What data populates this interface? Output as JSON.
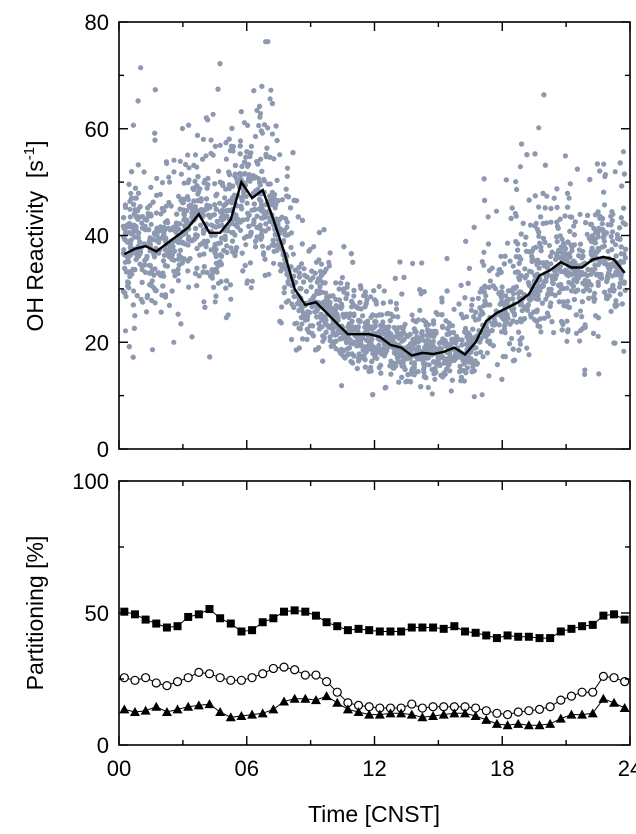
{
  "chart_data": [
    {
      "type": "scatter",
      "title": "",
      "xlabel": "",
      "ylabel": "OH Reactivity  [s",
      "ylabel_sup": "-1",
      "ylabel_end": "]",
      "xlim": [
        0,
        24
      ],
      "ylim": [
        0,
        80
      ],
      "yticks": [
        0,
        20,
        40,
        60,
        80
      ],
      "grid": false,
      "colors": {
        "points": "#8c99b0",
        "line": "#000000"
      },
      "scatter_bands": [
        {
          "x": 0.0,
          "lo": 15,
          "hi": 62
        },
        {
          "x": 1.0,
          "lo": 16,
          "hi": 65
        },
        {
          "x": 2.0,
          "lo": 17,
          "hi": 66
        },
        {
          "x": 3.0,
          "lo": 18,
          "hi": 68
        },
        {
          "x": 4.0,
          "lo": 19,
          "hi": 70
        },
        {
          "x": 5.0,
          "lo": 20,
          "hi": 70
        },
        {
          "x": 6.0,
          "lo": 22,
          "hi": 74
        },
        {
          "x": 7.0,
          "lo": 20,
          "hi": 72
        },
        {
          "x": 8.0,
          "lo": 15,
          "hi": 60
        },
        {
          "x": 9.0,
          "lo": 12,
          "hi": 48
        },
        {
          "x": 10.0,
          "lo": 10,
          "hi": 42
        },
        {
          "x": 11.0,
          "lo": 10,
          "hi": 38
        },
        {
          "x": 12.0,
          "lo": 9,
          "hi": 34
        },
        {
          "x": 13.0,
          "lo": 8,
          "hi": 33
        },
        {
          "x": 14.0,
          "lo": 7,
          "hi": 32
        },
        {
          "x": 15.0,
          "lo": 8,
          "hi": 32
        },
        {
          "x": 16.0,
          "lo": 9,
          "hi": 35
        },
        {
          "x": 17.0,
          "lo": 10,
          "hi": 45
        },
        {
          "x": 18.0,
          "lo": 11,
          "hi": 55
        },
        {
          "x": 19.0,
          "lo": 12,
          "hi": 62
        },
        {
          "x": 20.0,
          "lo": 14,
          "hi": 60
        },
        {
          "x": 21.0,
          "lo": 16,
          "hi": 52
        },
        {
          "x": 22.0,
          "lo": 14,
          "hi": 56
        },
        {
          "x": 23.0,
          "lo": 13,
          "hi": 66
        },
        {
          "x": 24.0,
          "lo": 15,
          "hi": 60
        }
      ],
      "line": {
        "x": [
          0.25,
          0.75,
          1.25,
          1.75,
          2.25,
          2.75,
          3.25,
          3.75,
          4.25,
          4.75,
          5.25,
          5.75,
          6.25,
          6.75,
          7.25,
          7.75,
          8.25,
          8.75,
          9.25,
          9.75,
          10.25,
          10.75,
          11.25,
          11.75,
          12.25,
          12.75,
          13.25,
          13.75,
          14.25,
          14.75,
          15.25,
          15.75,
          16.25,
          16.75,
          17.25,
          17.75,
          18.25,
          18.75,
          19.25,
          19.75,
          20.25,
          20.75,
          21.25,
          21.75,
          22.25,
          22.75,
          23.25,
          23.75
        ],
        "y": [
          36.5,
          37.5,
          38,
          37,
          38.5,
          40,
          41.5,
          44,
          40.5,
          40.5,
          43,
          50,
          47,
          48.5,
          43,
          37,
          30,
          27,
          27.5,
          25.5,
          23.5,
          21.5,
          21.5,
          21.5,
          21,
          19.5,
          19,
          17.5,
          18,
          17.8,
          18.2,
          19,
          17.7,
          20,
          24,
          25.5,
          26.5,
          27.5,
          29,
          32.5,
          33.5,
          35,
          34,
          34,
          35.5,
          36,
          35.5,
          33
        ]
      }
    },
    {
      "type": "line",
      "title": "",
      "xlabel": "Time [CNST]",
      "ylabel": "Partitioning [%]",
      "xlim": [
        0,
        24
      ],
      "ylim": [
        0,
        100
      ],
      "yticks": [
        0,
        50,
        100
      ],
      "xticks": [
        0,
        6,
        12,
        18,
        24
      ],
      "xtick_labels": [
        "00",
        "06",
        "12",
        "18",
        "24"
      ],
      "grid": false,
      "x": [
        0.25,
        0.75,
        1.25,
        1.75,
        2.25,
        2.75,
        3.25,
        3.75,
        4.25,
        4.75,
        5.25,
        5.75,
        6.25,
        6.75,
        7.25,
        7.75,
        8.25,
        8.75,
        9.25,
        9.75,
        10.25,
        10.75,
        11.25,
        11.75,
        12.25,
        12.75,
        13.25,
        13.75,
        14.25,
        14.75,
        15.25,
        15.75,
        16.25,
        16.75,
        17.25,
        17.75,
        18.25,
        18.75,
        19.25,
        19.75,
        20.25,
        20.75,
        21.25,
        21.75,
        22.25,
        22.75,
        23.25,
        23.75
      ],
      "series": [
        {
          "marker": "square-filled",
          "values": [
            50.5,
            49.5,
            47.5,
            46,
            44.5,
            45,
            48.5,
            49.5,
            51.5,
            48,
            46,
            43,
            43.5,
            46.5,
            48,
            50.5,
            51,
            50.5,
            49,
            46.5,
            45,
            43.5,
            44,
            43.5,
            43,
            43,
            43,
            44.5,
            44.5,
            44.5,
            44,
            45,
            43,
            42.5,
            41.5,
            40.5,
            41.5,
            41,
            41,
            40.5,
            40.5,
            43,
            44,
            45,
            45.5,
            49,
            49.5,
            47.5
          ]
        },
        {
          "marker": "circle-open",
          "values": [
            25.5,
            24.5,
            25.5,
            23.5,
            22.5,
            24,
            25.5,
            27.5,
            27,
            25.5,
            24.5,
            24.5,
            25.5,
            27,
            29,
            29.5,
            28.5,
            26.5,
            26.5,
            24,
            20,
            16,
            15,
            14.5,
            14,
            14,
            14,
            15.5,
            14,
            14.5,
            14.5,
            14.5,
            14.5,
            14,
            13,
            12,
            11.5,
            12.5,
            13,
            13.5,
            14.5,
            17,
            18.5,
            20,
            20,
            26,
            25.5,
            24
          ]
        },
        {
          "marker": "triangle-filled",
          "values": [
            13.5,
            12.5,
            13,
            14.5,
            12.5,
            13.5,
            14.5,
            15,
            15.5,
            12.5,
            10.5,
            11,
            11.5,
            12,
            13.5,
            16.5,
            17.5,
            17.5,
            17,
            18.5,
            16,
            13.5,
            12.5,
            11.5,
            11.5,
            12,
            12,
            11.5,
            10.5,
            11,
            11.5,
            12,
            12,
            11,
            9.5,
            8,
            7.5,
            8,
            7.5,
            7.5,
            8,
            10,
            11.5,
            11.5,
            12,
            17.5,
            16,
            14
          ]
        }
      ]
    }
  ]
}
